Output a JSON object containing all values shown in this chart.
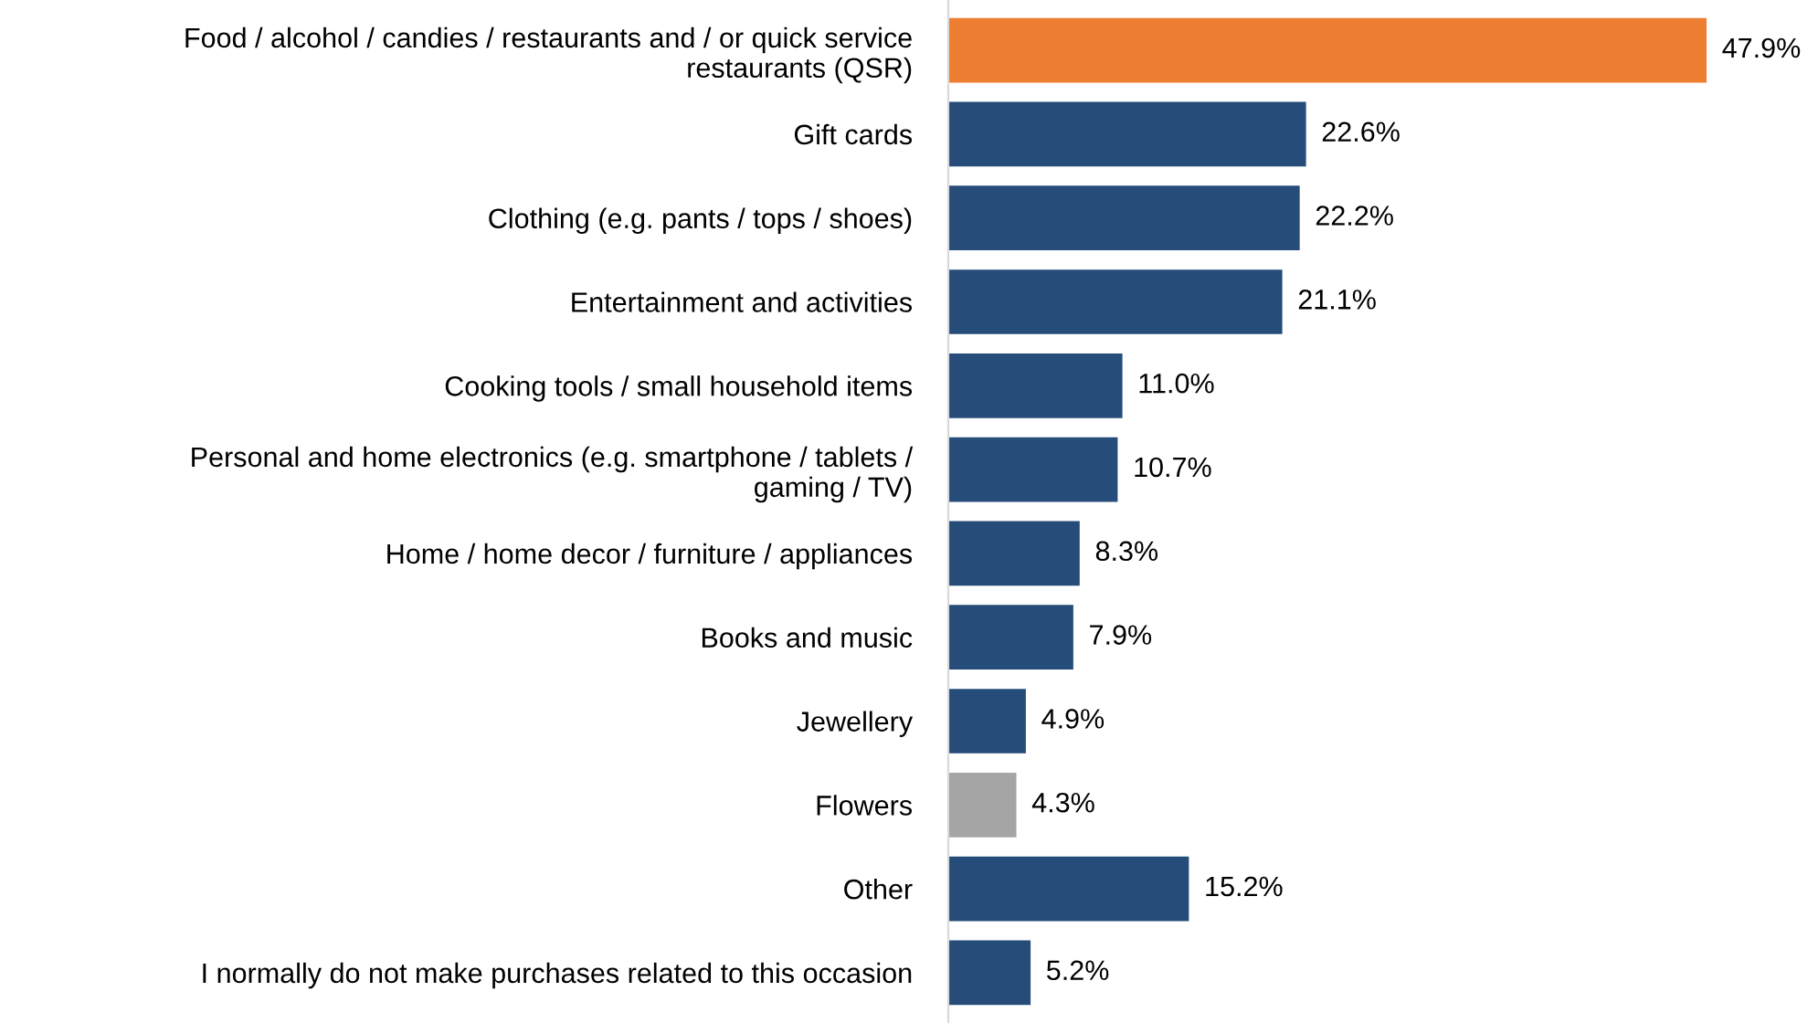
{
  "chart_data": {
    "type": "bar",
    "orientation": "horizontal",
    "categories": [
      "Food / alcohol / candies / restaurants and / or quick service\nrestaurants (QSR)",
      "Gift cards",
      "Clothing (e.g. pants / tops / shoes)",
      "Entertainment and activities",
      "Cooking tools / small household items",
      "Personal and home electronics (e.g. smartphone / tablets /\ngaming / TV)",
      "Home / home decor / furniture / appliances",
      "Books and music",
      "Jewellery",
      "Flowers",
      "Other",
      "I normally do not make purchases related to this occasion"
    ],
    "values": [
      47.9,
      22.6,
      22.2,
      21.1,
      11.0,
      10.7,
      8.3,
      7.9,
      4.9,
      4.3,
      15.2,
      5.2
    ],
    "colors": [
      "#ed7d31",
      "#264d79",
      "#264d79",
      "#264d79",
      "#264d79",
      "#264d79",
      "#264d79",
      "#264d79",
      "#264d79",
      "#a5a5a5",
      "#264d79",
      "#264d79"
    ],
    "value_labels": [
      "47.9%",
      "22.6%",
      "22.2%",
      "21.1%",
      "11.0%",
      "10.7%",
      "8.3%",
      "7.9%",
      "4.9%",
      "4.3%",
      "15.2%",
      "5.2%"
    ],
    "grid": false,
    "legend": false
  }
}
